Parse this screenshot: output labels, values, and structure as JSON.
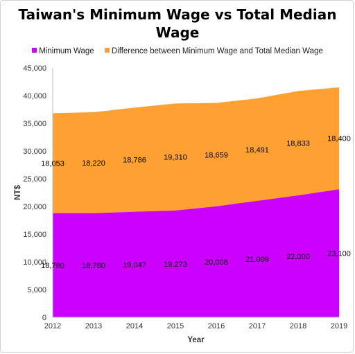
{
  "chart_data": {
    "type": "area",
    "stacked": true,
    "title": "Taiwan's Minimum Wage vs Total Median Wage",
    "title_lines": [
      "Taiwan's Minimum Wage vs Total Median",
      "Wage"
    ],
    "xlabel": "Year",
    "ylabel": "NT$",
    "categories": [
      "2012",
      "2013",
      "2014",
      "2015",
      "2016",
      "2017",
      "2018",
      "2019"
    ],
    "y_ticks": [
      "0",
      "5,000",
      "10,000",
      "15,000",
      "20,000",
      "25,000",
      "30,000",
      "35,000",
      "40,000",
      "45,000"
    ],
    "ylim": [
      0,
      45000
    ],
    "grid": false,
    "legend_position": "top",
    "series": [
      {
        "name": "Minimum Wage",
        "color": "#cc00ff",
        "values": [
          18780,
          18780,
          19047,
          19273,
          20008,
          21009,
          22000,
          23100
        ],
        "labels": [
          "18,780",
          "18,780",
          "19,047",
          "19,273",
          "20,008",
          "21,009",
          "22,000",
          "23,100"
        ]
      },
      {
        "name": "Difference between Minimum Wage and Total Median Wage",
        "color": "#ffa033",
        "values": [
          18053,
          18220,
          18786,
          19310,
          18659,
          18491,
          18833,
          18400
        ],
        "labels": [
          "18,053",
          "18,220",
          "18,786",
          "19,310",
          "18,659",
          "18,491",
          "18,833",
          "18,400"
        ]
      }
    ]
  }
}
